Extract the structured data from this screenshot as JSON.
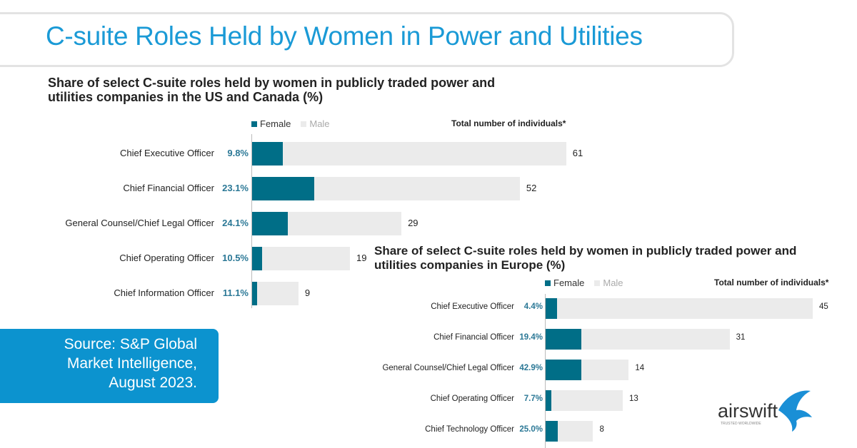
{
  "header": {
    "title": "C-suite Roles Held by Women in Power and Utilities"
  },
  "source": {
    "lines": [
      "Source: S&P Global",
      "Market Intelligence,",
      "August 2023."
    ]
  },
  "logo": {
    "text": "airswift",
    "tagline": "TRUSTED WORLDWIDE"
  },
  "colors": {
    "female": "#006e87",
    "male": "#ebebeb",
    "title": "#1a9ad6",
    "source_bg": "#0c93cf"
  },
  "chart_data": [
    {
      "type": "bar",
      "orientation": "horizontal-stacked",
      "title_lines": [
        "Share of select C-suite roles held by women in publicly traded power and",
        "utilities companies in the US and Canada (%)"
      ],
      "legend": [
        "Female",
        "Male"
      ],
      "total_header": "Total number of individuals*",
      "categories": [
        "Chief Executive Officer",
        "Chief Financial Officer",
        "General Counsel/Chief Legal Officer",
        "Chief Operating Officer",
        "Chief Information Officer"
      ],
      "female_pct": [
        "9.8%",
        "23.1%",
        "24.1%",
        "10.5%",
        "11.1%"
      ],
      "female_share": [
        9.8,
        23.1,
        24.1,
        10.5,
        11.1
      ],
      "totals": [
        61,
        52,
        29,
        19,
        9
      ]
    },
    {
      "type": "bar",
      "orientation": "horizontal-stacked",
      "title_lines": [
        "Share of select C-suite roles held by women in publicly traded power and",
        "utilities companies in Europe (%)"
      ],
      "legend": [
        "Female",
        "Male"
      ],
      "total_header": "Total number of individuals*",
      "categories": [
        "Chief Executive Officer",
        "Chief Financial Officer",
        "General Counsel/Chief Legal Officer",
        "Chief Operating Officer",
        "Chief Technology Officer"
      ],
      "female_pct": [
        "4.4%",
        "19.4%",
        "42.9%",
        "7.7%",
        "25.0%"
      ],
      "female_share": [
        4.4,
        19.4,
        42.9,
        7.7,
        25.0
      ],
      "totals": [
        45,
        31,
        14,
        13,
        8
      ]
    }
  ]
}
